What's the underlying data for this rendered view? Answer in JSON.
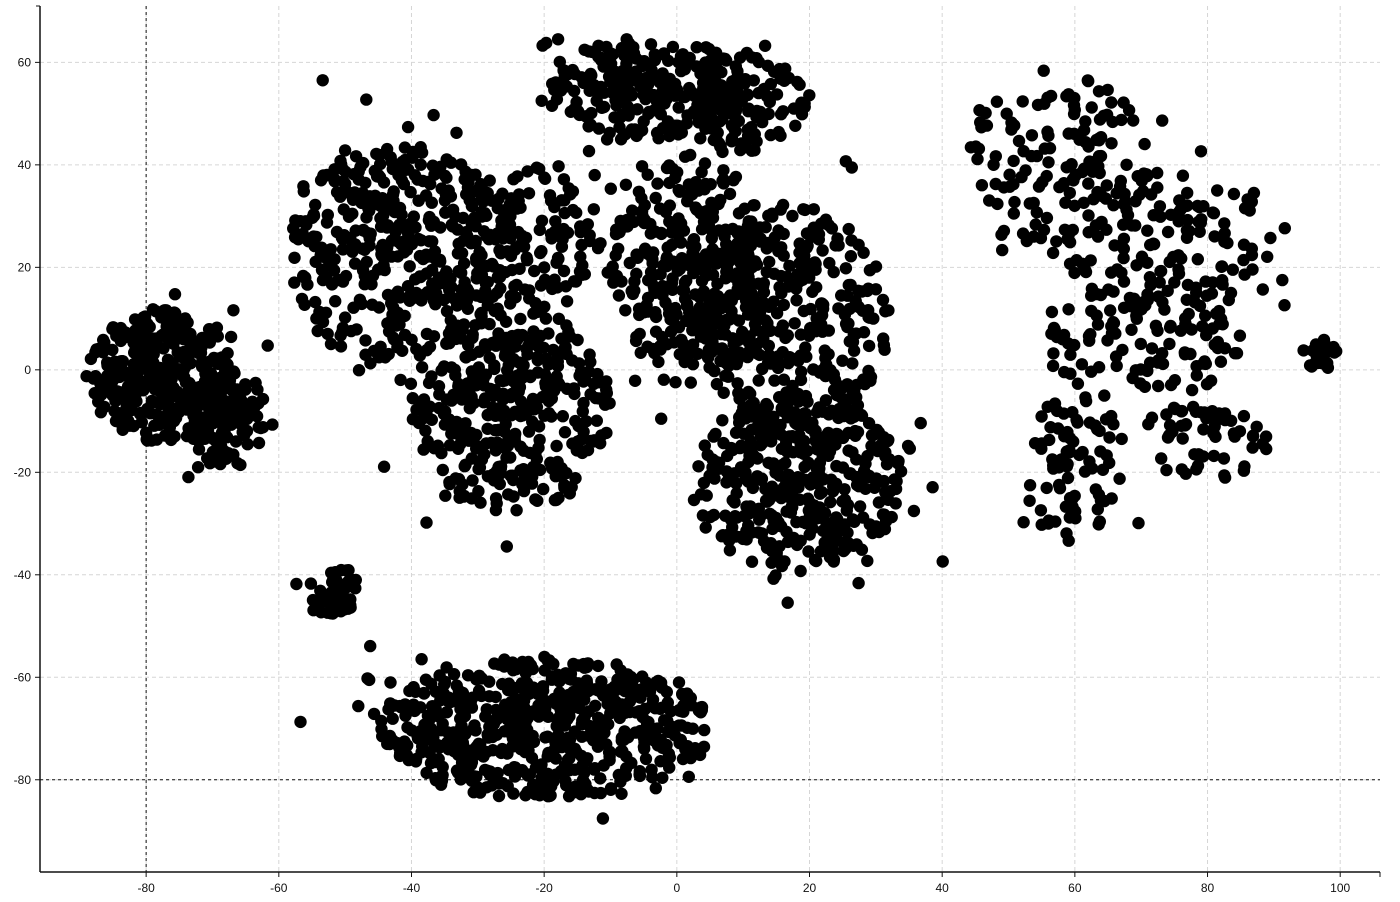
{
  "chart_data": {
    "type": "scatter",
    "title": "",
    "xlabel": "",
    "ylabel": "",
    "xlim": [
      -96,
      106
    ],
    "ylim": [
      -98,
      71
    ],
    "x_ticks": [
      -80,
      -60,
      -40,
      -20,
      0,
      20,
      40,
      60,
      80,
      100
    ],
    "y_ticks": [
      60,
      40,
      20,
      0,
      -20,
      -40,
      -60,
      -80
    ],
    "x_tick_labels": [
      "-80",
      "-60",
      "-40",
      "-20",
      "0",
      "20",
      "40",
      "60",
      "80",
      "100"
    ],
    "y_tick_labels": [
      "60",
      "40",
      "20",
      "0",
      "-20",
      "-40",
      "-60",
      "-80"
    ],
    "reference_lines": {
      "x": -80,
      "y": -80
    },
    "grid": true,
    "point_color": "#000000",
    "series": [
      {
        "clusters": [
          {
            "cx": -78,
            "cy": -1,
            "rx": 11,
            "ry": 13,
            "n": 340
          },
          {
            "cx": -68,
            "cy": -9,
            "rx": 6,
            "ry": 10,
            "n": 120
          },
          {
            "cx": -52,
            "cy": -43,
            "rx": 4,
            "ry": 5,
            "n": 50
          },
          {
            "cx": -42,
            "cy": 22,
            "rx": 17,
            "ry": 22,
            "n": 420
          },
          {
            "cx": -25,
            "cy": -8,
            "rx": 15,
            "ry": 20,
            "n": 380
          },
          {
            "cx": -22,
            "cy": 25,
            "rx": 9,
            "ry": 15,
            "n": 120
          },
          {
            "cx": -4,
            "cy": 55,
            "rx": 15,
            "ry": 10,
            "n": 260
          },
          {
            "cx": 10,
            "cy": 52,
            "rx": 10,
            "ry": 10,
            "n": 110
          },
          {
            "cx": 2,
            "cy": 20,
            "rx": 12,
            "ry": 22,
            "n": 300
          },
          {
            "cx": 17,
            "cy": 10,
            "rx": 15,
            "ry": 22,
            "n": 350
          },
          {
            "cx": 18,
            "cy": -22,
            "rx": 16,
            "ry": 17,
            "n": 400
          },
          {
            "cx": -20,
            "cy": -70,
            "rx": 25,
            "ry": 14,
            "n": 600
          },
          {
            "cx": 58,
            "cy": 40,
            "rx": 14,
            "ry": 18,
            "n": 140
          },
          {
            "cx": 74,
            "cy": 25,
            "rx": 16,
            "ry": 14,
            "n": 130
          },
          {
            "cx": 70,
            "cy": 5,
            "rx": 16,
            "ry": 10,
            "n": 110
          },
          {
            "cx": 60,
            "cy": -20,
            "rx": 8,
            "ry": 15,
            "n": 80
          },
          {
            "cx": 80,
            "cy": -14,
            "rx": 10,
            "ry": 8,
            "n": 60
          },
          {
            "cx": 97,
            "cy": 3,
            "rx": 2.5,
            "ry": 3,
            "n": 25
          }
        ]
      }
    ]
  }
}
